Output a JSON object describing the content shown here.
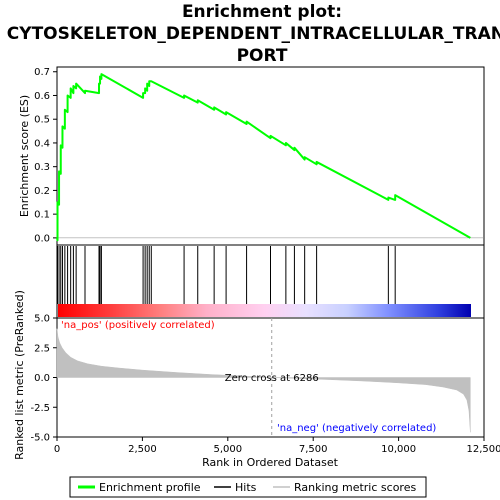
{
  "chart_data": {
    "type": "line",
    "title_lines": [
      "Enrichment plot:",
      "CYTOSKELETON_DEPENDENT_INTRACELLULAR_TRANS",
      "PORT"
    ],
    "xlabel": "Rank in Ordered Dataset",
    "ylabel_top": "Enrichment score (ES)",
    "ylabel_bottom": "Ranked list metric (PreRanked)",
    "xlim": [
      0,
      12500
    ],
    "x_ticks": [
      0,
      2500,
      5000,
      7500,
      10000,
      12500
    ],
    "x_tick_labels": [
      "0",
      "2,500",
      "5,000",
      "7,500",
      "10,000",
      "12,500"
    ],
    "es_ylim": [
      -0.03,
      0.72
    ],
    "es_ticks": [
      0.0,
      0.1,
      0.2,
      0.3,
      0.4,
      0.5,
      0.6,
      0.7
    ],
    "es_tick_labels": [
      "0.0",
      "0.1",
      "0.2",
      "0.3",
      "0.4",
      "0.5",
      "0.6",
      "0.7"
    ],
    "metric_ylim": [
      -5,
      5
    ],
    "metric_ticks": [
      5.0,
      2.5,
      0.0,
      -2.5,
      -5.0
    ],
    "metric_tick_labels": [
      "5.0",
      "2.5",
      "0.0",
      "-2.5",
      "-5.0"
    ],
    "n_genes": 12100,
    "hits": [
      15,
      60,
      110,
      160,
      230,
      310,
      400,
      480,
      560,
      820,
      1230,
      1260,
      1300,
      2520,
      2580,
      2640,
      2700,
      2760,
      3720,
      4120,
      4600,
      4950,
      5550,
      6250,
      6700,
      6950,
      7250,
      7600,
      9700,
      9900
    ],
    "es_curve": {
      "x": [
        0,
        15,
        15,
        60,
        60,
        110,
        110,
        160,
        160,
        230,
        230,
        310,
        310,
        400,
        400,
        480,
        480,
        560,
        560,
        820,
        820,
        1230,
        1230,
        1260,
        1260,
        1300,
        1300,
        2520,
        2520,
        2580,
        2580,
        2640,
        2640,
        2700,
        2700,
        2760,
        2760,
        3720,
        3720,
        4120,
        4120,
        4600,
        4600,
        4950,
        4950,
        5550,
        5550,
        6250,
        6250,
        6700,
        6700,
        6950,
        6950,
        7250,
        7250,
        7600,
        7600,
        9700,
        9700,
        9900,
        9900,
        12100
      ],
      "y": [
        0.0,
        -0.01,
        0.15,
        0.14,
        0.28,
        0.27,
        0.39,
        0.38,
        0.47,
        0.46,
        0.54,
        0.53,
        0.6,
        0.59,
        0.63,
        0.61,
        0.64,
        0.63,
        0.65,
        0.61,
        0.62,
        0.61,
        0.65,
        0.65,
        0.68,
        0.67,
        0.69,
        0.59,
        0.61,
        0.61,
        0.63,
        0.62,
        0.65,
        0.64,
        0.66,
        0.66,
        0.66,
        0.59,
        0.6,
        0.57,
        0.58,
        0.54,
        0.55,
        0.52,
        0.53,
        0.48,
        0.49,
        0.42,
        0.43,
        0.39,
        0.4,
        0.37,
        0.38,
        0.33,
        0.34,
        0.31,
        0.32,
        0.16,
        0.17,
        0.16,
        0.18,
        0.0
      ]
    },
    "metric_curve": {
      "x": [
        0,
        30,
        80,
        150,
        250,
        400,
        600,
        900,
        1300,
        1800,
        2500,
        3500,
        4500,
        5500,
        6286,
        7000,
        8000,
        9000,
        10000,
        10800,
        11300,
        11700,
        11900,
        12000,
        12060,
        12100
      ],
      "y": [
        4.1,
        3.4,
        2.9,
        2.5,
        2.1,
        1.7,
        1.4,
        1.15,
        0.95,
        0.8,
        0.62,
        0.42,
        0.25,
        0.12,
        0.0,
        -0.08,
        -0.18,
        -0.3,
        -0.45,
        -0.6,
        -0.8,
        -1.05,
        -1.4,
        -1.9,
        -2.8,
        -4.6
      ]
    },
    "zero_cross": 6286,
    "zero_cross_label": "Zero cross at 6286",
    "pos_label": "'na_pos' (positively correlated)",
    "neg_label": "'na_neg' (negatively correlated)",
    "legend": [
      "Enrichment profile",
      "Hits",
      "Ranking metric scores"
    ],
    "grid": false,
    "legend_position": "bottom"
  },
  "colors": {
    "es_line": "#00ff00",
    "hits": "#000000",
    "metric_fill": "#c0c0c0",
    "pos_text": "#ff0000",
    "neg_text": "#0000ff",
    "zero_line": "#a0a0a0"
  }
}
